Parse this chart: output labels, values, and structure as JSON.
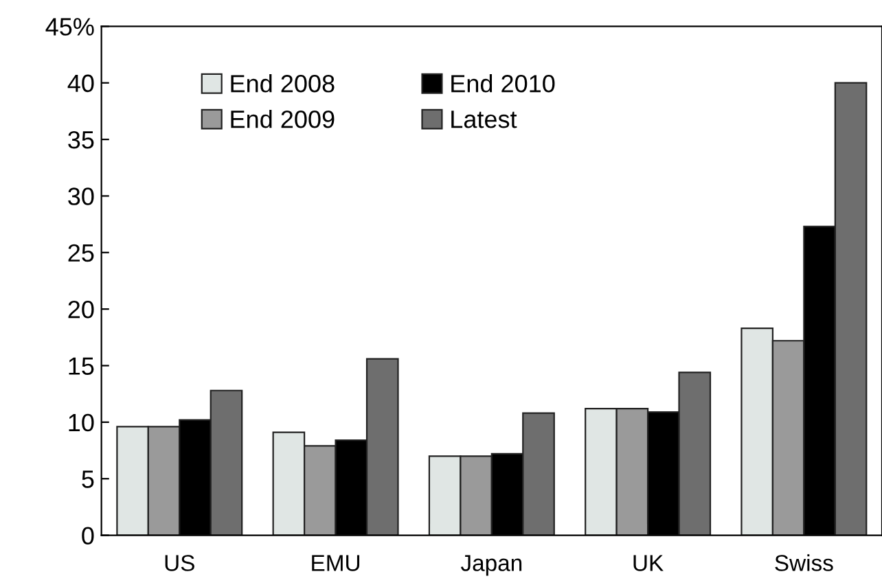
{
  "chart_data": {
    "type": "bar",
    "categories": [
      "US",
      "EMU",
      "Japan",
      "UK",
      "Swiss"
    ],
    "series": [
      {
        "name": "End 2008",
        "color": "#e0e6e4",
        "values": [
          9.6,
          9.1,
          7.0,
          11.2,
          18.3
        ]
      },
      {
        "name": "End 2009",
        "color": "#9a9a9a",
        "values": [
          9.6,
          7.9,
          7.0,
          11.2,
          17.2
        ]
      },
      {
        "name": "End 2010",
        "color": "#000000",
        "values": [
          10.2,
          8.4,
          7.2,
          10.9,
          27.3
        ]
      },
      {
        "name": "Latest",
        "color": "#6e6e6e",
        "values": [
          12.8,
          15.6,
          10.8,
          14.4,
          40.0
        ]
      }
    ],
    "ylim": [
      0,
      45
    ],
    "yticks": [
      0,
      5,
      10,
      15,
      20,
      25,
      30,
      35,
      40,
      {
        "value": 45,
        "label": "45%"
      }
    ],
    "grid": false,
    "legend": "top left"
  }
}
